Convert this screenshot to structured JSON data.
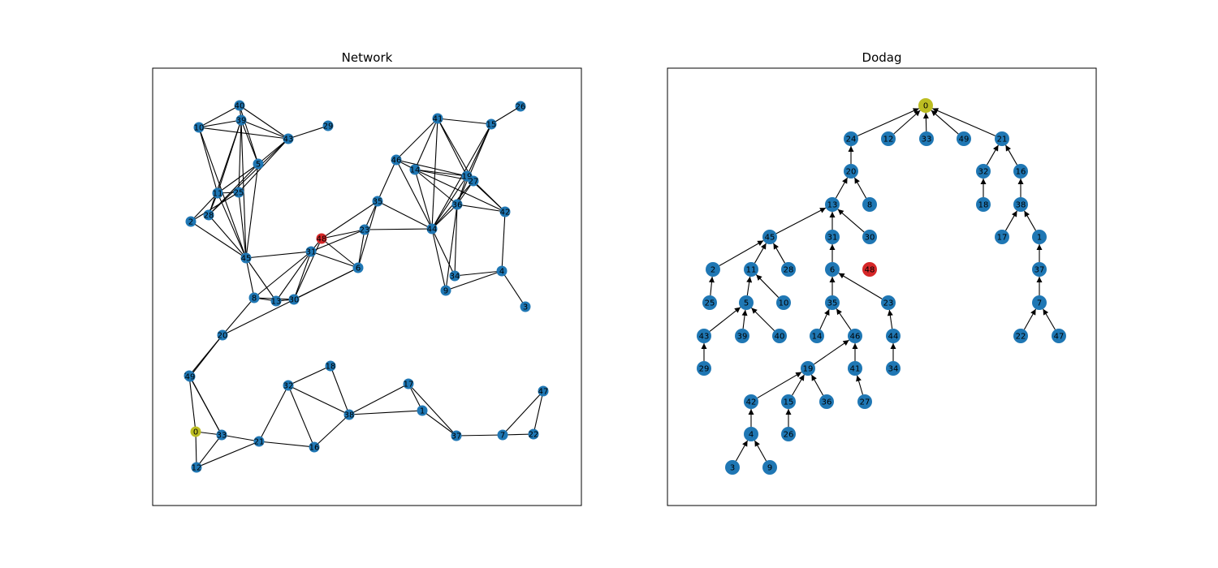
{
  "colors": {
    "default": "#1f77b4",
    "root": "#bcbd22",
    "isolated": "#d62728"
  },
  "panels": [
    {
      "title": "Network"
    },
    {
      "title": "Dodag"
    }
  ],
  "network": {
    "root": "0",
    "isolated": "48",
    "edges": [
      [
        "10",
        "40"
      ],
      [
        "10",
        "39"
      ],
      [
        "10",
        "43"
      ],
      [
        "10",
        "11"
      ],
      [
        "10",
        "45"
      ],
      [
        "40",
        "39"
      ],
      [
        "40",
        "43"
      ],
      [
        "40",
        "5"
      ],
      [
        "39",
        "43"
      ],
      [
        "39",
        "5"
      ],
      [
        "39",
        "11"
      ],
      [
        "39",
        "25"
      ],
      [
        "39",
        "28"
      ],
      [
        "39",
        "45"
      ],
      [
        "43",
        "29"
      ],
      [
        "43",
        "5"
      ],
      [
        "43",
        "25"
      ],
      [
        "43",
        "28"
      ],
      [
        "5",
        "11"
      ],
      [
        "5",
        "28"
      ],
      [
        "5",
        "45"
      ],
      [
        "11",
        "25"
      ],
      [
        "11",
        "2"
      ],
      [
        "11",
        "28"
      ],
      [
        "11",
        "45"
      ],
      [
        "25",
        "2"
      ],
      [
        "25",
        "45"
      ],
      [
        "2",
        "45"
      ],
      [
        "28",
        "45"
      ],
      [
        "45",
        "31"
      ],
      [
        "45",
        "8"
      ],
      [
        "45",
        "13"
      ],
      [
        "31",
        "48"
      ],
      [
        "31",
        "6"
      ],
      [
        "31",
        "8"
      ],
      [
        "31",
        "13"
      ],
      [
        "31",
        "30"
      ],
      [
        "31",
        "23"
      ],
      [
        "48",
        "6"
      ],
      [
        "48",
        "23"
      ],
      [
        "48",
        "35"
      ],
      [
        "48",
        "30"
      ],
      [
        "23",
        "35"
      ],
      [
        "23",
        "6"
      ],
      [
        "23",
        "44"
      ],
      [
        "35",
        "6"
      ],
      [
        "35",
        "46"
      ],
      [
        "35",
        "44"
      ],
      [
        "8",
        "13"
      ],
      [
        "8",
        "30"
      ],
      [
        "8",
        "20"
      ],
      [
        "13",
        "30"
      ],
      [
        "6",
        "30"
      ],
      [
        "6",
        "20"
      ],
      [
        "30",
        "13"
      ],
      [
        "41",
        "46"
      ],
      [
        "41",
        "15"
      ],
      [
        "41",
        "14"
      ],
      [
        "41",
        "19"
      ],
      [
        "41",
        "44"
      ],
      [
        "41",
        "27"
      ],
      [
        "15",
        "26"
      ],
      [
        "15",
        "19"
      ],
      [
        "15",
        "44"
      ],
      [
        "15",
        "38"
      ],
      [
        "46",
        "14"
      ],
      [
        "46",
        "19"
      ],
      [
        "46",
        "44"
      ],
      [
        "14",
        "19"
      ],
      [
        "14",
        "27"
      ],
      [
        "14",
        "42"
      ],
      [
        "14",
        "44"
      ],
      [
        "14",
        "38"
      ],
      [
        "19",
        "27"
      ],
      [
        "19",
        "38"
      ],
      [
        "19",
        "44"
      ],
      [
        "19",
        "42"
      ],
      [
        "27",
        "42"
      ],
      [
        "27",
        "38"
      ],
      [
        "27",
        "44"
      ],
      [
        "38",
        "42"
      ],
      [
        "38",
        "44"
      ],
      [
        "38",
        "34"
      ],
      [
        "44",
        "34"
      ],
      [
        "44",
        "9"
      ],
      [
        "34",
        "4"
      ],
      [
        "9",
        "4"
      ],
      [
        "9",
        "38"
      ],
      [
        "4",
        "42"
      ],
      [
        "4",
        "3"
      ],
      [
        "20",
        "24"
      ],
      [
        "20",
        "49"
      ],
      [
        "24",
        "49"
      ],
      [
        "24",
        "0"
      ],
      [
        "24",
        "33"
      ],
      [
        "49",
        "33"
      ],
      [
        "0",
        "33"
      ],
      [
        "0",
        "12"
      ],
      [
        "33",
        "12"
      ],
      [
        "33",
        "21"
      ],
      [
        "12",
        "21"
      ],
      [
        "21",
        "16"
      ],
      [
        "21",
        "32"
      ],
      [
        "32",
        "18"
      ],
      [
        "32",
        "16"
      ],
      [
        "32",
        "38b"
      ],
      [
        "18",
        "38b"
      ],
      [
        "16",
        "38b"
      ],
      [
        "38b",
        "17"
      ],
      [
        "38b",
        "1"
      ],
      [
        "17",
        "1"
      ],
      [
        "17",
        "37"
      ],
      [
        "1",
        "37"
      ],
      [
        "37",
        "7"
      ],
      [
        "7",
        "22"
      ],
      [
        "7",
        "47"
      ],
      [
        "22",
        "47"
      ]
    ],
    "nodes": [
      {
        "id": "40",
        "label": "40"
      },
      {
        "id": "39",
        "label": "39"
      },
      {
        "id": "10",
        "label": "10"
      },
      {
        "id": "43",
        "label": "43"
      },
      {
        "id": "29",
        "label": "29"
      },
      {
        "id": "5",
        "label": "5"
      },
      {
        "id": "11",
        "label": "11"
      },
      {
        "id": "25",
        "label": "25"
      },
      {
        "id": "2",
        "label": "2"
      },
      {
        "id": "28",
        "label": "28"
      },
      {
        "id": "45",
        "label": "45"
      },
      {
        "id": "31",
        "label": "31"
      },
      {
        "id": "48",
        "label": "48"
      },
      {
        "id": "23",
        "label": "23"
      },
      {
        "id": "35",
        "label": "35"
      },
      {
        "id": "6",
        "label": "6"
      },
      {
        "id": "8",
        "label": "8"
      },
      {
        "id": "13",
        "label": "13"
      },
      {
        "id": "30",
        "label": "30"
      },
      {
        "id": "20",
        "label": "20"
      },
      {
        "id": "41",
        "label": "41"
      },
      {
        "id": "15",
        "label": "15"
      },
      {
        "id": "26",
        "label": "26"
      },
      {
        "id": "46",
        "label": "46"
      },
      {
        "id": "14",
        "label": "14"
      },
      {
        "id": "19",
        "label": "19"
      },
      {
        "id": "27",
        "label": "27"
      },
      {
        "id": "38",
        "label": "36"
      },
      {
        "id": "42",
        "label": "42"
      },
      {
        "id": "44",
        "label": "44"
      },
      {
        "id": "34",
        "label": "34"
      },
      {
        "id": "9",
        "label": "9"
      },
      {
        "id": "4",
        "label": "4"
      },
      {
        "id": "3",
        "label": "3"
      },
      {
        "id": "24",
        "label": "24"
      },
      {
        "id": "49",
        "label": "49"
      },
      {
        "id": "0",
        "label": "0"
      },
      {
        "id": "33",
        "label": "33"
      },
      {
        "id": "12",
        "label": "12"
      },
      {
        "id": "21",
        "label": "21"
      },
      {
        "id": "16",
        "label": "16"
      },
      {
        "id": "32",
        "label": "32"
      },
      {
        "id": "18",
        "label": "18"
      },
      {
        "id": "38b",
        "label": "38"
      },
      {
        "id": "17",
        "label": "17"
      },
      {
        "id": "1",
        "label": "1"
      },
      {
        "id": "37",
        "label": "37"
      },
      {
        "id": "7",
        "label": "7"
      },
      {
        "id": "22",
        "label": "22"
      },
      {
        "id": "47",
        "label": "47"
      }
    ]
  },
  "dodag": {
    "root": "0",
    "isolated": "48",
    "nodes": [
      {
        "id": "0",
        "label": "0"
      },
      {
        "id": "24",
        "label": "24"
      },
      {
        "id": "12",
        "label": "12"
      },
      {
        "id": "33",
        "label": "33"
      },
      {
        "id": "49",
        "label": "49"
      },
      {
        "id": "21",
        "label": "21"
      },
      {
        "id": "20",
        "label": "20"
      },
      {
        "id": "32",
        "label": "32"
      },
      {
        "id": "16",
        "label": "16"
      },
      {
        "id": "13",
        "label": "13"
      },
      {
        "id": "8",
        "label": "8"
      },
      {
        "id": "18",
        "label": "18"
      },
      {
        "id": "38",
        "label": "38"
      },
      {
        "id": "45",
        "label": "45"
      },
      {
        "id": "31",
        "label": "31"
      },
      {
        "id": "30",
        "label": "30"
      },
      {
        "id": "17",
        "label": "17"
      },
      {
        "id": "1",
        "label": "1"
      },
      {
        "id": "2",
        "label": "2"
      },
      {
        "id": "11",
        "label": "11"
      },
      {
        "id": "28",
        "label": "28"
      },
      {
        "id": "6",
        "label": "6"
      },
      {
        "id": "48",
        "label": "48"
      },
      {
        "id": "37",
        "label": "37"
      },
      {
        "id": "25",
        "label": "25"
      },
      {
        "id": "5",
        "label": "5"
      },
      {
        "id": "10",
        "label": "10"
      },
      {
        "id": "35",
        "label": "35"
      },
      {
        "id": "23",
        "label": "23"
      },
      {
        "id": "7",
        "label": "7"
      },
      {
        "id": "43",
        "label": "43"
      },
      {
        "id": "39",
        "label": "39"
      },
      {
        "id": "40",
        "label": "40"
      },
      {
        "id": "14",
        "label": "14"
      },
      {
        "id": "46",
        "label": "46"
      },
      {
        "id": "44",
        "label": "44"
      },
      {
        "id": "22",
        "label": "22"
      },
      {
        "id": "47",
        "label": "47"
      },
      {
        "id": "29",
        "label": "29"
      },
      {
        "id": "19",
        "label": "19"
      },
      {
        "id": "41",
        "label": "41"
      },
      {
        "id": "34",
        "label": "34"
      },
      {
        "id": "42",
        "label": "42"
      },
      {
        "id": "15",
        "label": "15"
      },
      {
        "id": "36",
        "label": "36"
      },
      {
        "id": "27",
        "label": "27"
      },
      {
        "id": "4",
        "label": "4"
      },
      {
        "id": "26",
        "label": "26"
      },
      {
        "id": "3",
        "label": "3"
      },
      {
        "id": "9",
        "label": "9"
      }
    ],
    "edges": [
      [
        "24",
        "0"
      ],
      [
        "12",
        "0"
      ],
      [
        "33",
        "0"
      ],
      [
        "49",
        "0"
      ],
      [
        "21",
        "0"
      ],
      [
        "20",
        "24"
      ],
      [
        "32",
        "21"
      ],
      [
        "16",
        "21"
      ],
      [
        "13",
        "20"
      ],
      [
        "8",
        "20"
      ],
      [
        "18",
        "32"
      ],
      [
        "38",
        "16"
      ],
      [
        "45",
        "13"
      ],
      [
        "31",
        "13"
      ],
      [
        "30",
        "13"
      ],
      [
        "17",
        "38"
      ],
      [
        "1",
        "38"
      ],
      [
        "2",
        "45"
      ],
      [
        "11",
        "45"
      ],
      [
        "28",
        "45"
      ],
      [
        "6",
        "31"
      ],
      [
        "37",
        "1"
      ],
      [
        "25",
        "2"
      ],
      [
        "5",
        "11"
      ],
      [
        "10",
        "11"
      ],
      [
        "35",
        "6"
      ],
      [
        "23",
        "6"
      ],
      [
        "7",
        "37"
      ],
      [
        "43",
        "5"
      ],
      [
        "39",
        "5"
      ],
      [
        "40",
        "5"
      ],
      [
        "14",
        "35"
      ],
      [
        "46",
        "35"
      ],
      [
        "44",
        "23"
      ],
      [
        "22",
        "7"
      ],
      [
        "47",
        "7"
      ],
      [
        "29",
        "43"
      ],
      [
        "19",
        "46"
      ],
      [
        "41",
        "46"
      ],
      [
        "34",
        "44"
      ],
      [
        "42",
        "19"
      ],
      [
        "15",
        "19"
      ],
      [
        "36",
        "19"
      ],
      [
        "27",
        "41"
      ],
      [
        "4",
        "42"
      ],
      [
        "26",
        "15"
      ],
      [
        "3",
        "4"
      ],
      [
        "9",
        "4"
      ]
    ]
  }
}
